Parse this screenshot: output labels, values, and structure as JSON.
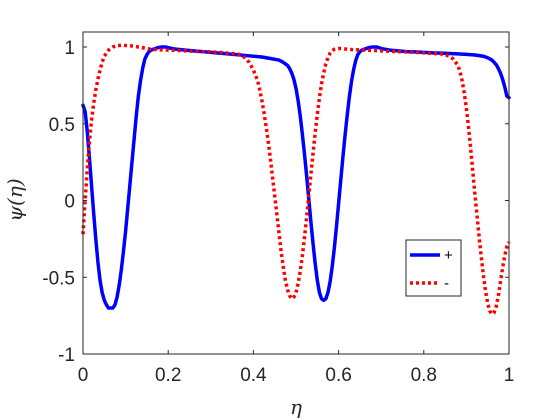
{
  "chart_data": {
    "type": "line",
    "title": "",
    "xlabel": "η",
    "ylabel": "ψ(η)",
    "xlim": [
      0,
      1
    ],
    "ylim": [
      -1,
      1.1
    ],
    "grid": false,
    "legend_position": "right",
    "x_ticks": [
      {
        "value": 0,
        "label": "0"
      },
      {
        "value": 0.2,
        "label": "0.2"
      },
      {
        "value": 0.4,
        "label": "0.4"
      },
      {
        "value": 0.6,
        "label": "0.6"
      },
      {
        "value": 0.8,
        "label": "0.8"
      },
      {
        "value": 1,
        "label": "1"
      }
    ],
    "y_ticks": [
      {
        "value": -1,
        "label": "-1"
      },
      {
        "value": -0.5,
        "label": "-0.5"
      },
      {
        "value": 0,
        "label": "0"
      },
      {
        "value": 0.5,
        "label": "0.5"
      },
      {
        "value": 1,
        "label": "1"
      }
    ],
    "series": [
      {
        "name": "+",
        "color": "#0000ff",
        "style": "solid",
        "x": [
          0,
          0.005,
          0.01,
          0.015,
          0.02,
          0.025,
          0.03,
          0.035,
          0.04,
          0.045,
          0.05,
          0.055,
          0.06,
          0.065,
          0.07,
          0.075,
          0.08,
          0.085,
          0.09,
          0.095,
          0.1,
          0.105,
          0.11,
          0.115,
          0.12,
          0.125,
          0.13,
          0.135,
          0.14,
          0.145,
          0.15,
          0.155,
          0.16,
          0.165,
          0.17,
          0.175,
          0.18,
          0.185,
          0.19,
          0.195,
          0.2,
          0.21,
          0.22,
          0.24,
          0.26,
          0.28,
          0.3,
          0.32,
          0.34,
          0.36,
          0.38,
          0.4,
          0.42,
          0.44,
          0.46,
          0.47,
          0.48,
          0.485,
          0.49,
          0.495,
          0.5,
          0.505,
          0.51,
          0.515,
          0.52,
          0.525,
          0.53,
          0.535,
          0.54,
          0.545,
          0.55,
          0.555,
          0.56,
          0.565,
          0.57,
          0.575,
          0.58,
          0.585,
          0.59,
          0.595,
          0.6,
          0.605,
          0.61,
          0.615,
          0.62,
          0.625,
          0.63,
          0.635,
          0.64,
          0.645,
          0.65,
          0.655,
          0.66,
          0.665,
          0.67,
          0.675,
          0.68,
          0.685,
          0.69,
          0.695,
          0.7,
          0.71,
          0.72,
          0.74,
          0.76,
          0.78,
          0.8,
          0.82,
          0.84,
          0.86,
          0.88,
          0.9,
          0.92,
          0.94,
          0.95,
          0.96,
          0.965,
          0.97,
          0.975,
          0.98,
          0.985,
          0.99,
          0.995,
          1
        ],
        "y": [
          0.62,
          0.58,
          0.45,
          0.28,
          0.1,
          -0.08,
          -0.25,
          -0.4,
          -0.52,
          -0.6,
          -0.65,
          -0.68,
          -0.7,
          -0.7,
          -0.7,
          -0.68,
          -0.63,
          -0.55,
          -0.45,
          -0.33,
          -0.2,
          -0.05,
          0.1,
          0.25,
          0.4,
          0.55,
          0.68,
          0.78,
          0.86,
          0.92,
          0.95,
          0.97,
          0.98,
          0.985,
          0.99,
          0.995,
          0.998,
          1.0,
          1.0,
          1.0,
          0.995,
          0.99,
          0.985,
          0.98,
          0.975,
          0.97,
          0.965,
          0.96,
          0.955,
          0.95,
          0.945,
          0.94,
          0.935,
          0.925,
          0.915,
          0.9,
          0.88,
          0.86,
          0.83,
          0.79,
          0.73,
          0.65,
          0.55,
          0.43,
          0.3,
          0.16,
          0.01,
          -0.14,
          -0.28,
          -0.41,
          -0.52,
          -0.6,
          -0.64,
          -0.65,
          -0.64,
          -0.6,
          -0.53,
          -0.43,
          -0.31,
          -0.17,
          -0.02,
          0.13,
          0.28,
          0.42,
          0.55,
          0.67,
          0.77,
          0.85,
          0.91,
          0.95,
          0.97,
          0.98,
          0.985,
          0.99,
          0.995,
          0.998,
          1.0,
          1.0,
          1.0,
          0.995,
          0.99,
          0.985,
          0.98,
          0.975,
          0.97,
          0.968,
          0.965,
          0.962,
          0.96,
          0.958,
          0.955,
          0.952,
          0.948,
          0.94,
          0.93,
          0.915,
          0.9,
          0.885,
          0.86,
          0.83,
          0.79,
          0.74,
          0.68,
          0.67
        ]
      },
      {
        "name": "-",
        "color": "#ff0000",
        "style": "dotted",
        "x": [
          0,
          0.005,
          0.01,
          0.015,
          0.02,
          0.025,
          0.03,
          0.035,
          0.04,
          0.045,
          0.05,
          0.055,
          0.06,
          0.065,
          0.07,
          0.075,
          0.08,
          0.085,
          0.09,
          0.095,
          0.1,
          0.11,
          0.12,
          0.13,
          0.14,
          0.15,
          0.16,
          0.18,
          0.2,
          0.22,
          0.24,
          0.26,
          0.28,
          0.3,
          0.32,
          0.34,
          0.36,
          0.37,
          0.38,
          0.39,
          0.4,
          0.41,
          0.415,
          0.42,
          0.425,
          0.43,
          0.435,
          0.44,
          0.445,
          0.45,
          0.455,
          0.46,
          0.465,
          0.47,
          0.475,
          0.48,
          0.485,
          0.49,
          0.495,
          0.5,
          0.505,
          0.51,
          0.515,
          0.52,
          0.525,
          0.53,
          0.535,
          0.54,
          0.545,
          0.55,
          0.555,
          0.56,
          0.565,
          0.57,
          0.575,
          0.58,
          0.585,
          0.59,
          0.6,
          0.61,
          0.62,
          0.64,
          0.66,
          0.68,
          0.7,
          0.72,
          0.74,
          0.76,
          0.78,
          0.8,
          0.82,
          0.84,
          0.85,
          0.86,
          0.87,
          0.88,
          0.885,
          0.89,
          0.895,
          0.9,
          0.905,
          0.91,
          0.915,
          0.92,
          0.925,
          0.93,
          0.935,
          0.94,
          0.945,
          0.95,
          0.955,
          0.96,
          0.965,
          0.97,
          0.975,
          0.98,
          0.985,
          0.99,
          0.995,
          1
        ],
        "y": [
          -0.22,
          0.0,
          0.2,
          0.38,
          0.52,
          0.63,
          0.72,
          0.79,
          0.85,
          0.9,
          0.94,
          0.96,
          0.98,
          0.99,
          1.0,
          1.005,
          1.01,
          1.01,
          1.012,
          1.012,
          1.01,
          1.008,
          1.005,
          1.0,
          0.995,
          0.99,
          0.985,
          0.982,
          0.98,
          0.978,
          0.975,
          0.972,
          0.97,
          0.968,
          0.965,
          0.96,
          0.955,
          0.95,
          0.93,
          0.9,
          0.85,
          0.78,
          0.72,
          0.65,
          0.57,
          0.48,
          0.38,
          0.27,
          0.15,
          0.03,
          -0.09,
          -0.21,
          -0.33,
          -0.43,
          -0.52,
          -0.58,
          -0.62,
          -0.64,
          -0.63,
          -0.6,
          -0.54,
          -0.46,
          -0.36,
          -0.24,
          -0.11,
          0.03,
          0.17,
          0.31,
          0.44,
          0.56,
          0.67,
          0.76,
          0.83,
          0.89,
          0.93,
          0.96,
          0.975,
          0.985,
          0.99,
          0.99,
          0.985,
          0.982,
          0.98,
          0.978,
          0.975,
          0.972,
          0.97,
          0.968,
          0.965,
          0.962,
          0.958,
          0.955,
          0.95,
          0.94,
          0.92,
          0.88,
          0.84,
          0.78,
          0.7,
          0.6,
          0.48,
          0.34,
          0.19,
          0.04,
          -0.1,
          -0.24,
          -0.37,
          -0.49,
          -0.59,
          -0.67,
          -0.72,
          -0.74,
          -0.73,
          -0.69,
          -0.62,
          -0.53,
          -0.44,
          -0.36,
          -0.3,
          -0.27
        ]
      }
    ]
  }
}
